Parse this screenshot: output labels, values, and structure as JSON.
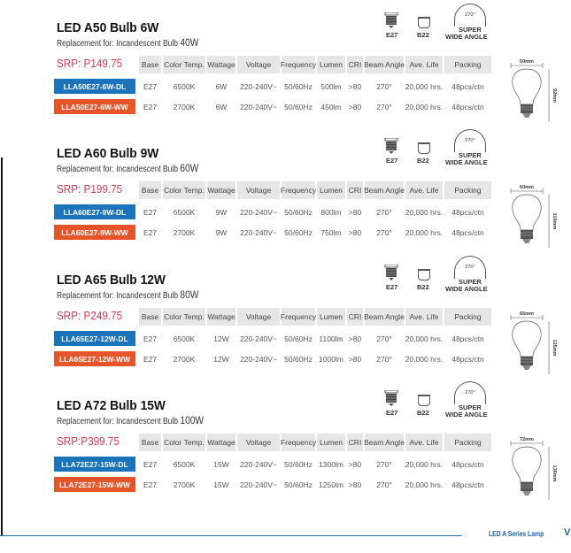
{
  "columns": [
    "Base",
    "Color Temp.",
    "Wattage",
    "Voltage",
    "Frequency",
    "Lumen",
    "CRI",
    "Beam Angle",
    "Ave. Life",
    "Packing"
  ],
  "icons": {
    "e27_label": "E27",
    "b22_label": "B22",
    "angle_value": "270°",
    "angle_label_1": "SUPER",
    "angle_label_2": "WIDE ANGLE"
  },
  "colors": {
    "daylight_badge": "#1a73bb",
    "warmwhite_badge": "#e6552a",
    "srp": "#d33a52",
    "accent": "#1b5fa8"
  },
  "products": [
    {
      "title": "LED A50 Bulb 6W",
      "replacement_label": "Replacement for: Incandescent Bulb",
      "replacement_watt": "40W",
      "srp": "SRP: P149.75",
      "width_dim": "50mm",
      "height_dim": "92mm",
      "rows": [
        {
          "sku": "LLA50E27-6W-DL",
          "values": [
            "E27",
            "6500K",
            "6W",
            "220-240V~",
            "50/60Hz",
            "500lm",
            ">80",
            "270°",
            "20,000 hrs.",
            "48pcs/ctn"
          ]
        },
        {
          "sku": "LLA50E27-6W-WW",
          "values": [
            "E27",
            "2700K",
            "6W",
            "220-240V~",
            "50/60Hz",
            "450lm",
            ">80",
            "270°",
            "20,000 hrs.",
            "48pcs/ctn"
          ]
        }
      ]
    },
    {
      "title": "LED A60 Bulb 9W",
      "replacement_label": "Replacement for: Incandescent Bulb",
      "replacement_watt": "60W",
      "srp": "SRP: P199.75",
      "width_dim": "60mm",
      "height_dim": "110mm",
      "rows": [
        {
          "sku": "LLA60E27-9W-DL",
          "values": [
            "E27",
            "6500K",
            "9W",
            "220-240V~",
            "50/60Hz",
            "800lm",
            ">80",
            "270°",
            "20,000 hrs.",
            "48pcs/ctn"
          ]
        },
        {
          "sku": "LLA60E27-9W-WW",
          "values": [
            "E27",
            "2700K",
            "9W",
            "220-240V~",
            "50/60Hz",
            "750lm",
            ">80",
            "270°",
            "20,000 hrs.",
            "48pcs/ctn"
          ]
        }
      ]
    },
    {
      "title": "LED A65 Bulb 12W",
      "replacement_label": "Replacement for: Incandescent Bulb",
      "replacement_watt": "80W",
      "srp": "SRP: P249.75",
      "width_dim": "65mm",
      "height_dim": "125mm",
      "rows": [
        {
          "sku": "LLA65E27-12W-DL",
          "values": [
            "E27",
            "6500K",
            "12W",
            "220-240V~",
            "50/60Hz",
            "1100lm",
            ">80",
            "270°",
            "20,000 hrs.",
            "48pcs/ctn"
          ]
        },
        {
          "sku": "LLA65E27-12W-WW",
          "values": [
            "E27",
            "2700K",
            "12W",
            "220-240V~",
            "50/60Hz",
            "1000lm",
            ">80",
            "270°",
            "20,000 hrs.",
            "48pcs/ctn"
          ]
        }
      ]
    },
    {
      "title": "LED A72 Bulb 15W",
      "replacement_label": "Replacement for: Incandescent Bulb",
      "replacement_watt": "100W",
      "srp": "SRP:P399.75",
      "width_dim": "72mm",
      "height_dim": "136mm",
      "rows": [
        {
          "sku": "LLA72E27-15W-DL",
          "values": [
            "E27",
            "6500K",
            "15W",
            "220-240V~",
            "50/60Hz",
            "1300lm",
            ">80",
            "270°",
            "20,000 hrs.",
            "48pcs/ctn"
          ]
        },
        {
          "sku": "LLA72E27-15W-WW",
          "values": [
            "E27",
            "2700K",
            "15W",
            "220-240V~",
            "50/60Hz",
            "1250lm",
            ">80",
            "270°",
            "20,000 hrs.",
            "48pcs/ctn"
          ]
        }
      ]
    }
  ],
  "footer": {
    "label": "LED A Series Lamp",
    "mark": "V"
  }
}
